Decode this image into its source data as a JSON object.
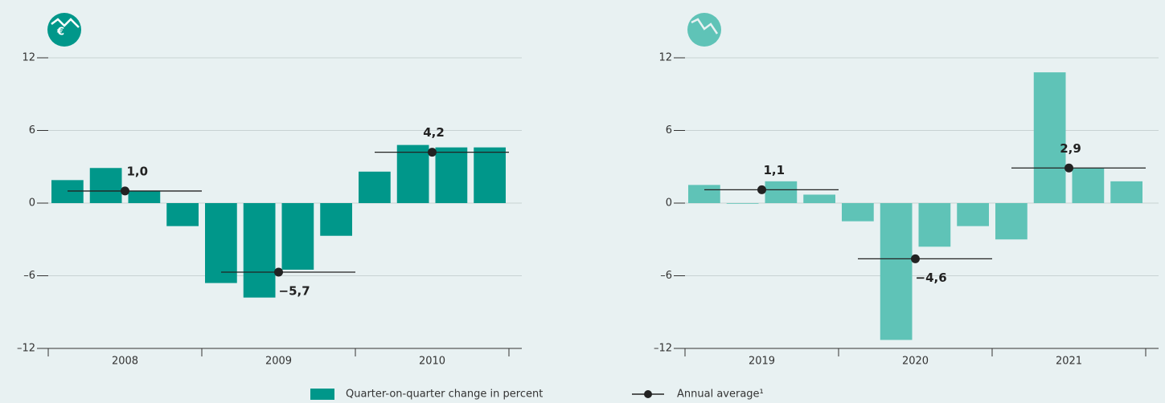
{
  "chart_data": [
    {
      "type": "bar",
      "color": "#00978a",
      "groups": [
        "2008",
        "2009",
        "2010"
      ],
      "values": [
        1.9,
        2.9,
        1.0,
        -1.9,
        -6.6,
        -7.8,
        -5.5,
        -2.7,
        2.6,
        4.8,
        4.6,
        4.6
      ],
      "annual_average": {
        "values": [
          1.0,
          -5.7,
          4.2
        ],
        "value_labels": [
          "1,0",
          "−5,7",
          "4,2"
        ]
      },
      "ylim": [
        -12,
        12
      ],
      "yticks": [
        {
          "value": -12,
          "label": "–12"
        },
        {
          "value": -6,
          "label": "–6"
        },
        0,
        6,
        12
      ],
      "grid": true
    },
    {
      "type": "bar",
      "color": "#5fc3b7",
      "groups": [
        "2019",
        "2020",
        "2021"
      ],
      "values": [
        1.5,
        0.0,
        1.8,
        0.7,
        -1.5,
        -11.3,
        -3.6,
        -1.9,
        -3.0,
        10.8,
        2.9,
        1.8
      ],
      "annual_average": {
        "values": [
          1.1,
          -4.6,
          2.9
        ],
        "value_labels": [
          "1,1",
          "−4,6",
          "2,9"
        ]
      },
      "ylim": [
        -12,
        12
      ],
      "yticks": [
        {
          "value": -12,
          "label": "–12"
        },
        {
          "value": -6,
          "label": "–6"
        },
        0,
        6,
        12
      ],
      "grid": true
    }
  ],
  "legend": {
    "bars": "Quarter-on-quarter change in percent",
    "average": "Annual average¹"
  }
}
